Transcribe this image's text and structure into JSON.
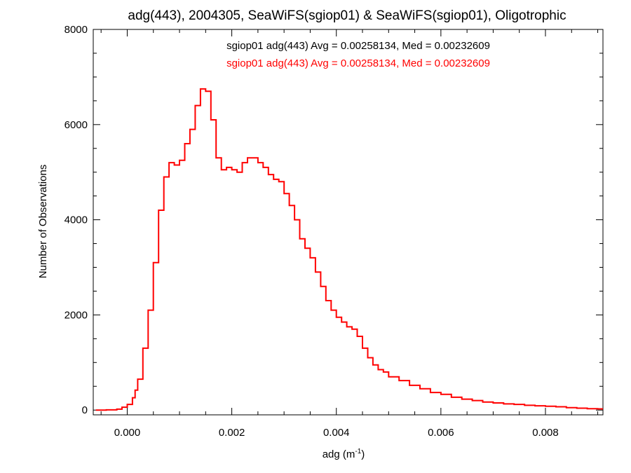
{
  "chart_data": {
    "type": "line",
    "title": "adg(443), 2004305, SeaWiFS(sgiop01) & SeaWiFS(sgiop01), Oligotrophic",
    "xlabel": "adg (m",
    "xlabel_exponent": "-1",
    "xlabel_suffix": ")",
    "ylabel": "Number of Observations",
    "xlim": [
      -0.00065,
      0.0091
    ],
    "ylim": [
      -100,
      8000
    ],
    "x_ticks": [
      0.0,
      0.002,
      0.004,
      0.006,
      0.008
    ],
    "x_tick_labels": [
      "0.000",
      "0.002",
      "0.004",
      "0.006",
      "0.008"
    ],
    "y_ticks": [
      0,
      2000,
      4000,
      6000,
      8000
    ],
    "y_tick_labels": [
      "0",
      "2000",
      "4000",
      "6000",
      "8000"
    ],
    "grid": false,
    "annotations": [
      {
        "text": "sgiop01 adg(443) Avg = 0.00258134, Med = 0.00232609",
        "color": "#000000"
      },
      {
        "text": "sgiop01 adg(443) Avg = 0.00258134, Med = 0.00232609",
        "color": "#ff0000"
      }
    ],
    "series": [
      {
        "color": "#ff0000",
        "style": "step",
        "x": [
          -0.0006,
          -0.0004,
          -0.0002,
          -0.0001,
          0.0,
          0.0001,
          0.00015,
          0.0002,
          0.0003,
          0.0004,
          0.0005,
          0.0006,
          0.0007,
          0.0008,
          0.0009,
          0.001,
          0.0011,
          0.0012,
          0.0013,
          0.0014,
          0.00145,
          0.0015,
          0.0016,
          0.0017,
          0.0018,
          0.0019,
          0.002,
          0.0021,
          0.0022,
          0.0023,
          0.0024,
          0.0025,
          0.0026,
          0.0027,
          0.0028,
          0.0029,
          0.003,
          0.0031,
          0.0032,
          0.0033,
          0.0034,
          0.0035,
          0.0036,
          0.0037,
          0.0038,
          0.0039,
          0.004,
          0.0041,
          0.0042,
          0.0043,
          0.0044,
          0.0045,
          0.0046,
          0.0047,
          0.0048,
          0.0049,
          0.005,
          0.0052,
          0.0054,
          0.0056,
          0.0058,
          0.006,
          0.0062,
          0.0064,
          0.0066,
          0.0068,
          0.007,
          0.0072,
          0.0074,
          0.0076,
          0.0078,
          0.008,
          0.0082,
          0.0084,
          0.0086,
          0.0088,
          0.009
        ],
        "y": [
          0,
          5,
          20,
          60,
          120,
          260,
          420,
          650,
          1300,
          2100,
          3100,
          4200,
          4900,
          5200,
          5150,
          5250,
          5600,
          5900,
          6400,
          6750,
          6750,
          6700,
          6100,
          5300,
          5050,
          5100,
          5050,
          5000,
          5200,
          5300,
          5300,
          5200,
          5100,
          4950,
          4850,
          4800,
          4550,
          4300,
          4000,
          3600,
          3400,
          3200,
          2900,
          2600,
          2300,
          2100,
          1950,
          1850,
          1750,
          1700,
          1550,
          1300,
          1100,
          950,
          850,
          800,
          700,
          620,
          520,
          450,
          370,
          330,
          270,
          230,
          200,
          170,
          150,
          130,
          120,
          100,
          90,
          80,
          70,
          50,
          40,
          30,
          25
        ]
      }
    ]
  }
}
